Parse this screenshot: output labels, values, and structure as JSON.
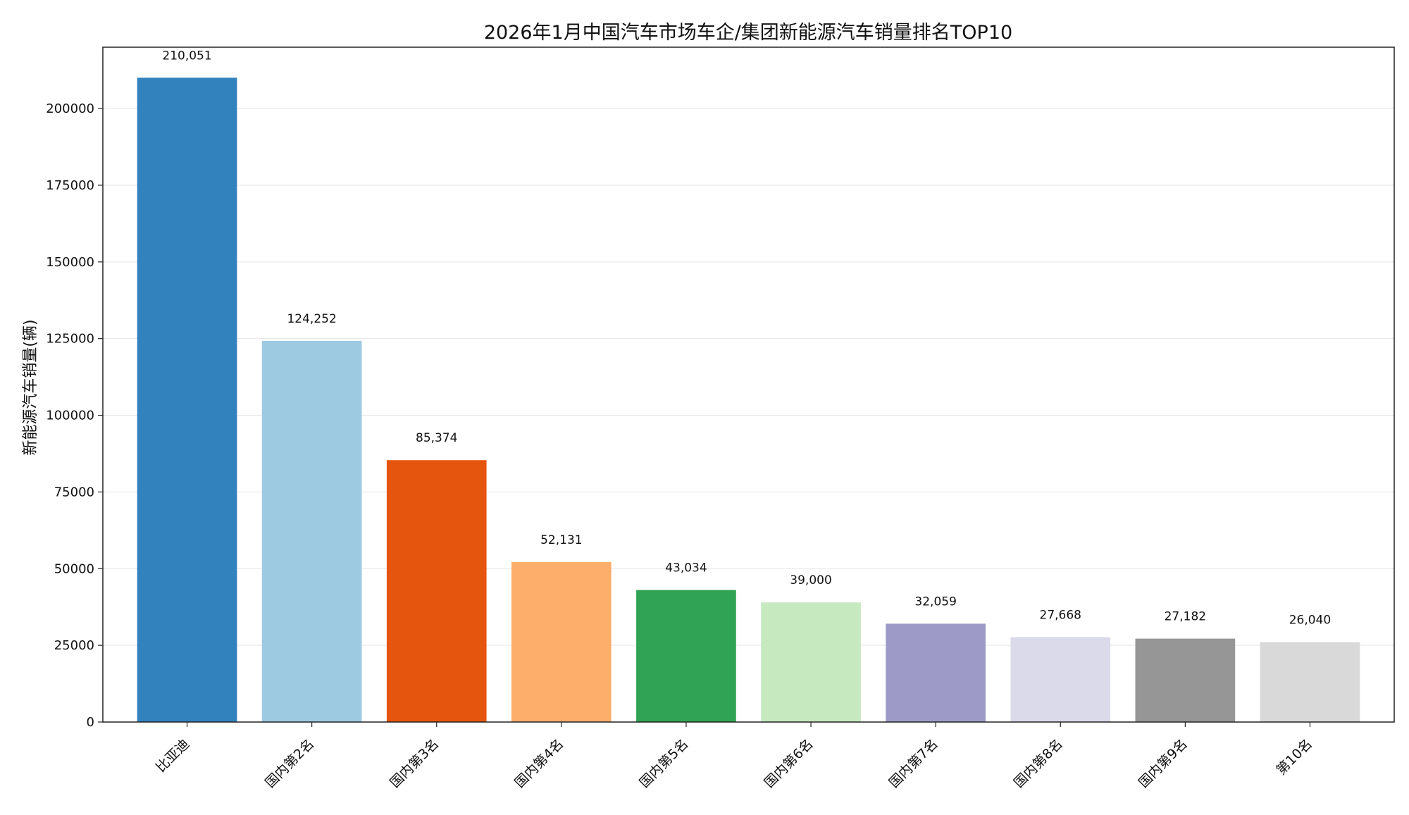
{
  "chart_data": {
    "type": "bar",
    "title": "2026年1月中国汽车市场车企/集团新能源汽车销量排名TOP10",
    "xlabel": "",
    "ylabel": "新能源汽车销量(辆)",
    "ylim": [
      0,
      220000
    ],
    "yticks": [
      0,
      25000,
      50000,
      75000,
      100000,
      125000,
      150000,
      175000,
      200000
    ],
    "grid": true,
    "categories": [
      "比亚迪",
      "国内第2名",
      "国内第3名",
      "国内第4名",
      "国内第5名",
      "国内第6名",
      "国内第7名",
      "国内第8名",
      "国内第9名",
      "第10名"
    ],
    "values": [
      210051,
      124252,
      85374,
      52131,
      43034,
      39000,
      32059,
      27668,
      27182,
      26040
    ],
    "data_labels": [
      "210,051",
      "124,252",
      "85,374",
      "52,131",
      "43,034",
      "39,000",
      "32,059",
      "27,668",
      "27,182",
      "26,040"
    ],
    "colors": [
      "#3182bd",
      "#9ecae1",
      "#e6550d",
      "#fdae6b",
      "#31a354",
      "#c7e9c0",
      "#9e9ac8",
      "#dadaeb",
      "#969696",
      "#d9d9d9"
    ]
  }
}
